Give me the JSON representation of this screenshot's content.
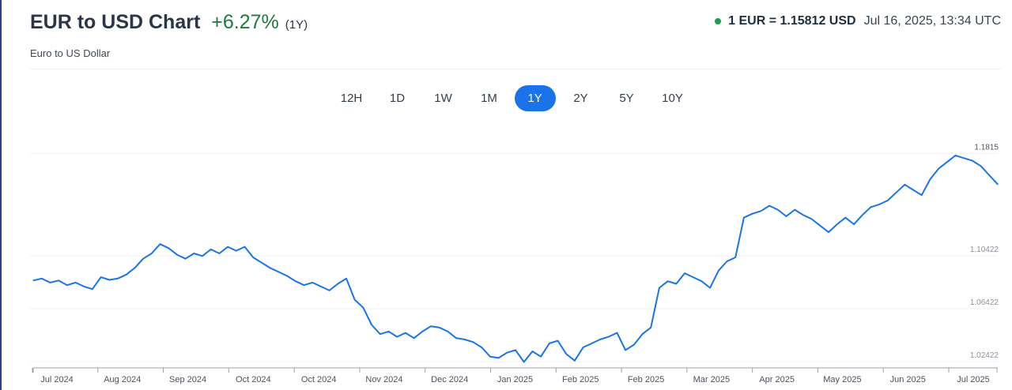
{
  "header": {
    "title": "EUR to USD Chart",
    "change": "+6.27%",
    "period": "(1Y)",
    "subtitle": "Euro to US Dollar",
    "rate": "1 EUR = 1.15812 USD",
    "timestamp": "Jul 16, 2025, 13:34 UTC"
  },
  "ranges": [
    {
      "label": "12H",
      "active": false
    },
    {
      "label": "1D",
      "active": false
    },
    {
      "label": "1W",
      "active": false
    },
    {
      "label": "1M",
      "active": false
    },
    {
      "label": "1Y",
      "active": true
    },
    {
      "label": "2Y",
      "active": false
    },
    {
      "label": "5Y",
      "active": false
    },
    {
      "label": "10Y",
      "active": false
    }
  ],
  "colors": {
    "line": "#1a73e8",
    "positive": "#1e7a3a",
    "status": "#1f9d4c",
    "active_tab": "#1a73e8"
  },
  "chart_data": {
    "type": "line",
    "x_labels": [
      "Jul 2024",
      "Aug 2024",
      "Sep 2024",
      "Oct 2024",
      "Oct 2024",
      "Nov 2024",
      "Dec 2024",
      "Jan 2025",
      "Feb 2025",
      "Feb 2025",
      "Mar 2025",
      "Apr 2025",
      "May 2025",
      "Jun 2025",
      "Jul 2025"
    ],
    "y_ticks": [
      "1.1815",
      "1.10422",
      "1.06422",
      "1.02422"
    ],
    "ylim": [
      1.0195,
      1.1865
    ],
    "grid": true,
    "series": [
      {
        "values": [
          1.0855,
          1.087,
          1.084,
          1.0855,
          1.082,
          1.084,
          1.081,
          1.079,
          1.088,
          1.086,
          1.087,
          1.09,
          1.095,
          1.102,
          1.106,
          1.113,
          1.11,
          1.105,
          1.102,
          1.106,
          1.104,
          1.109,
          1.106,
          1.111,
          1.108,
          1.111,
          1.103,
          1.099,
          1.095,
          1.092,
          1.089,
          1.085,
          1.082,
          1.084,
          1.081,
          1.078,
          1.083,
          1.087,
          1.071,
          1.065,
          1.052,
          1.045,
          1.047,
          1.043,
          1.046,
          1.042,
          1.047,
          1.051,
          1.05,
          1.047,
          1.042,
          1.041,
          1.039,
          1.035,
          1.028,
          1.027,
          1.031,
          1.033,
          1.024,
          1.032,
          1.028,
          1.038,
          1.04,
          1.03,
          1.025,
          1.035,
          1.038,
          1.041,
          1.043,
          1.046,
          1.033,
          1.037,
          1.045,
          1.05,
          1.08,
          1.085,
          1.083,
          1.091,
          1.088,
          1.085,
          1.08,
          1.093,
          1.1,
          1.103,
          1.133,
          1.136,
          1.138,
          1.142,
          1.139,
          1.134,
          1.139,
          1.135,
          1.132,
          1.127,
          1.122,
          1.128,
          1.133,
          1.128,
          1.135,
          1.141,
          1.143,
          1.146,
          1.152,
          1.158,
          1.154,
          1.15,
          1.162,
          1.17,
          1.175,
          1.18,
          1.178,
          1.176,
          1.172,
          1.165,
          1.1581
        ]
      }
    ]
  }
}
